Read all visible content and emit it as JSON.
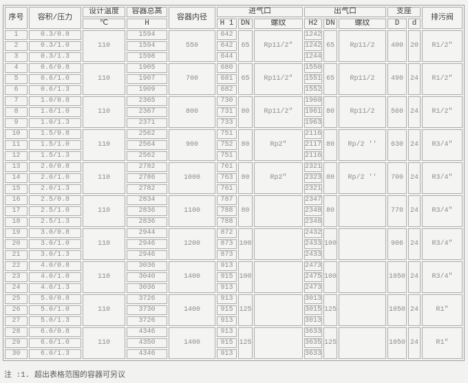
{
  "table": {
    "headers": {
      "serial": "序号",
      "volume_pressure": "容积/压力",
      "design_temp_line1": "设计温度",
      "design_temp_line2": "℃",
      "total_height_line1": "容器总高",
      "total_height_line2": "H",
      "inner_diameter": "容器内径",
      "inlet_group": "进气口",
      "inlet_h1": "H 1",
      "inlet_dn": "DN",
      "inlet_thread": "螺纹",
      "outlet_group": "出气口",
      "outlet_h2": "H2",
      "outlet_dn": "DN",
      "outlet_thread": "螺纹",
      "support_group": "支座",
      "support_D": "D",
      "support_d": "d",
      "drain_valve": "排污阀"
    },
    "groups": [
      {
        "temp": "110",
        "diameter": "550",
        "dn_in": "65",
        "thread_in": "Rp11/2″",
        "dn_out": "65",
        "thread_out": "Rp11/2",
        "D": "400",
        "d": "20",
        "drain": "R1/2″",
        "rows": [
          {
            "no": "1",
            "vp": "0.3/0.8",
            "H": "1594",
            "h1": "642",
            "h2": "1242"
          },
          {
            "no": "2",
            "vp": "0.3/1.0",
            "H": "1594",
            "h1": "642",
            "h2": "1242"
          },
          {
            "no": "3",
            "vp": "0.3/1.3",
            "H": "1598",
            "h1": "644",
            "h2": "1244"
          }
        ]
      },
      {
        "temp": "110",
        "diameter": "700",
        "dn_in": "65",
        "thread_in": "Rp11/2″",
        "dn_out": "65",
        "thread_out": "Rp11/2",
        "D": "490",
        "d": "24",
        "drain": "R1/2″",
        "rows": [
          {
            "no": "4",
            "vp": "0.6/0.8",
            "H": "1905",
            "h1": "680",
            "h2": "1550"
          },
          {
            "no": "5",
            "vp": "0.6/1.0",
            "H": "1907",
            "h1": "681",
            "h2": "1551"
          },
          {
            "no": "6",
            "vp": "0.6/1.3",
            "H": "1909",
            "h1": "682",
            "h2": "1552"
          }
        ]
      },
      {
        "temp": "110",
        "diameter": "800",
        "dn_in": "80",
        "thread_in": "Rp11/2″",
        "dn_out": "80",
        "thread_out": "Rp11/2",
        "D": "560",
        "d": "24",
        "drain": "R1/2″",
        "rows": [
          {
            "no": "7",
            "vp": "1.0/0.8",
            "H": "2365",
            "h1": "730",
            "h2": "1960"
          },
          {
            "no": "8",
            "vp": "1.0/1.0",
            "H": "2367",
            "h1": "731",
            "h2": "1961"
          },
          {
            "no": "9",
            "vp": "1.0/1.3",
            "H": "2371",
            "h1": "733",
            "h2": "1963"
          }
        ]
      },
      {
        "temp": "110",
        "diameter": "900",
        "dn_in": "80",
        "thread_in": "Rp2″",
        "dn_out": "80",
        "thread_out": "Rp/2 ′′",
        "D": "630",
        "d": "24",
        "drain": "R3/4″",
        "rows": [
          {
            "no": "10",
            "vp": "1.5/0.8",
            "H": "2562",
            "h1": "751",
            "h2": "2116"
          },
          {
            "no": "11",
            "vp": "1.5/1.0",
            "H": "2564",
            "h1": "752",
            "h2": "2117"
          },
          {
            "no": "12",
            "vp": "1.5/1.3",
            "H": "2562",
            "h1": "751",
            "h2": "2116"
          }
        ]
      },
      {
        "temp": "110",
        "diameter": "1000",
        "dn_in": "80",
        "thread_in": "Rp2″",
        "dn_out": "80",
        "thread_out": "Rp/2 ′′",
        "D": "700",
        "d": "24",
        "drain": "R3/4″",
        "rows": [
          {
            "no": "13",
            "vp": "2.0/0.8",
            "H": "2782",
            "h1": "761",
            "h2": "2321"
          },
          {
            "no": "14",
            "vp": "2.0/1.0",
            "H": "2786",
            "h1": "763",
            "h2": "2323"
          },
          {
            "no": "15",
            "vp": "2.0/1.3",
            "H": "2782",
            "h1": "761",
            "h2": "2321"
          }
        ]
      },
      {
        "temp": "110",
        "diameter": "1100",
        "dn_in": "80",
        "thread_in": "",
        "dn_out": "80",
        "thread_out": "",
        "D": "770",
        "d": "24",
        "drain": "R3/4″",
        "rows": [
          {
            "no": "16",
            "vp": "2.5/0.8",
            "H": "2834",
            "h1": "787",
            "h2": "2347"
          },
          {
            "no": "17",
            "vp": "2.5/1.0",
            "H": "2836",
            "h1": "788",
            "h2": "2348"
          },
          {
            "no": "18",
            "vp": "2.5/1.3",
            "H": "2836",
            "h1": "788",
            "h2": "2348"
          }
        ]
      },
      {
        "temp": "110",
        "diameter": "1200",
        "dn_in": "100",
        "thread_in": "",
        "dn_out": "100",
        "thread_out": "",
        "D": "906",
        "d": "24",
        "drain": "R3/4″",
        "rows": [
          {
            "no": "19",
            "vp": "3.0/0.8",
            "H": "2944",
            "h1": "872",
            "h2": "2432"
          },
          {
            "no": "20",
            "vp": "3.0/1.0",
            "H": "2946",
            "h1": "873",
            "h2": "2433"
          },
          {
            "no": "21",
            "vp": "3.0/1.3",
            "H": "2946",
            "h1": "873",
            "h2": "2433"
          }
        ]
      },
      {
        "temp": "110",
        "diameter": "1400",
        "dn_in": "100",
        "thread_in": "",
        "dn_out": "100",
        "thread_out": "",
        "D": "1050",
        "d": "24",
        "drain": "R3/4″",
        "rows": [
          {
            "no": "22",
            "vp": "4.0/0.8",
            "H": "3036",
            "h1": "913",
            "h2": "2473"
          },
          {
            "no": "23",
            "vp": "4.0/1.0",
            "H": "3040",
            "h1": "915",
            "h2": "2475"
          },
          {
            "no": "24",
            "vp": "4.0/1.3",
            "H": "3036",
            "h1": "913",
            "h2": "2473"
          }
        ]
      },
      {
        "temp": "110",
        "diameter": "1400",
        "dn_in": "125",
        "thread_in": "",
        "dn_out": "125",
        "thread_out": "",
        "D": "1050",
        "d": "24",
        "drain": "R1″",
        "rows": [
          {
            "no": "25",
            "vp": "5.0/0.8",
            "H": "3726",
            "h1": "913",
            "h2": "3013"
          },
          {
            "no": "26",
            "vp": "5.0/1.0",
            "H": "3730",
            "h1": "915",
            "h2": "3015"
          },
          {
            "no": "27",
            "vp": "5.0/1.3",
            "H": "3726",
            "h1": "913",
            "h2": "3013"
          }
        ]
      },
      {
        "temp": "110",
        "diameter": "1400",
        "dn_in": "125",
        "thread_in": "",
        "dn_out": "125",
        "thread_out": "",
        "D": "1050",
        "d": "24",
        "drain": "R1″",
        "rows": [
          {
            "no": "28",
            "vp": "6.0/0.8",
            "H": "4346",
            "h1": "913",
            "h2": "3633"
          },
          {
            "no": "29",
            "vp": "6.0/1.0",
            "H": "4350",
            "h1": "915",
            "h2": "3635"
          },
          {
            "no": "30",
            "vp": "6.0/1.3",
            "H": "4346",
            "h1": "913",
            "h2": "3633"
          }
        ]
      }
    ]
  },
  "note": "注 :1.  超出表格范围的容器可另议",
  "colors": {
    "page_bg": "#f2f2f0",
    "cell_border": "#acacac",
    "header_text": "#3d3d3d",
    "data_text": "#8c8c8c"
  }
}
